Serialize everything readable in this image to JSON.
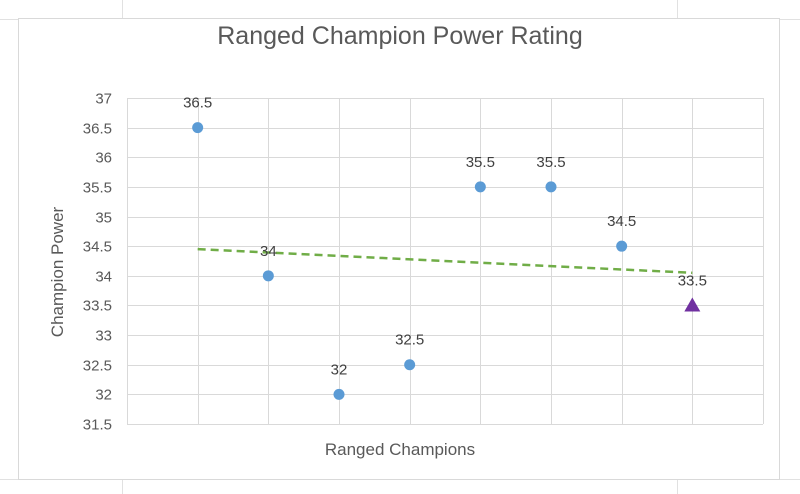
{
  "chart_data": {
    "type": "scatter",
    "title": "Ranged Champion Power Rating",
    "xlabel": "Ranged Champions",
    "ylabel": "Champion Power",
    "ylim": [
      31.5,
      37
    ],
    "y_ticks": [
      "31.5",
      "32",
      "32.5",
      "33",
      "33.5",
      "34",
      "34.5",
      "35",
      "35.5",
      "36",
      "36.5",
      "37"
    ],
    "xlim": [
      0,
      9
    ],
    "grid": true,
    "legend": "none",
    "series": [
      {
        "x": [
          1,
          2,
          3,
          4,
          5,
          6,
          7
        ],
        "values": [
          36.5,
          34,
          32,
          32.5,
          35.5,
          35.5,
          34.5
        ],
        "labels": [
          "36.5",
          "34",
          "32",
          "32.5",
          "35.5",
          "35.5",
          "34.5"
        ],
        "marker": "circle",
        "color": "#5b9bd5"
      },
      {
        "x": [
          8
        ],
        "values": [
          33.5
        ],
        "labels": [
          "33.5"
        ],
        "marker": "triangle",
        "color": "#7030a0"
      }
    ],
    "trendline": {
      "type": "linear",
      "x": [
        1,
        8
      ],
      "values": [
        34.45,
        34.05
      ],
      "color": "#70ad47",
      "style": "dashed"
    }
  }
}
